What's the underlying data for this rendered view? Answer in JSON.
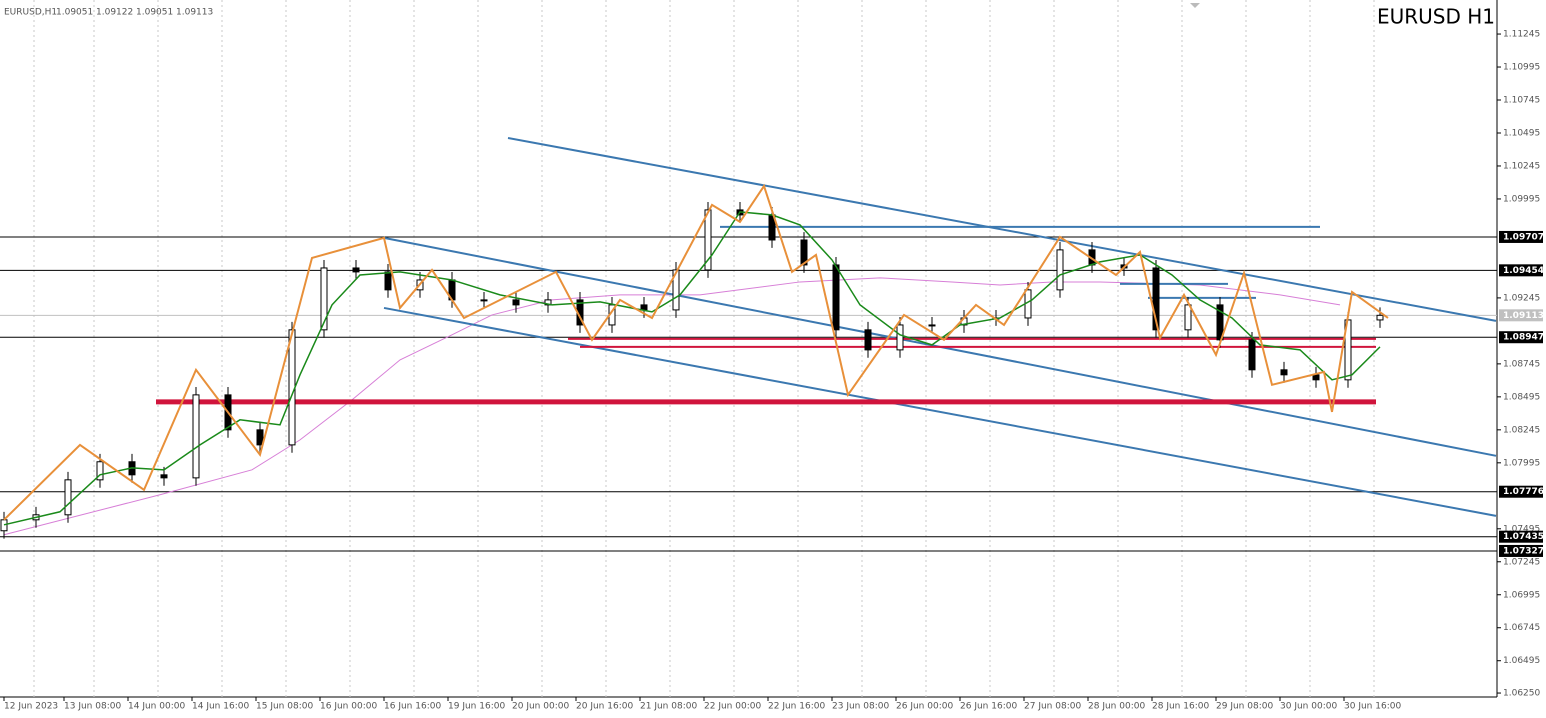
{
  "chart_data": {
    "type": "candlestick",
    "title": "EURUSD H1",
    "header_symbol": "EURUSD,H1",
    "header_ohlc": [
      1.09051,
      1.09122,
      1.09051,
      1.09113
    ],
    "xlim": [
      0,
      374
    ],
    "ylim": [
      1.0622,
      1.11503
    ],
    "yticks": [
      1.11245,
      1.10995,
      1.10745,
      1.10495,
      1.10245,
      1.09995,
      1.09245,
      1.08745,
      1.08495,
      1.08245,
      1.07995,
      1.07495,
      1.07245,
      1.06995,
      1.06745,
      1.06495,
      {
        "value": 1.0625,
        "label": "1.06250"
      }
    ],
    "xticks": [
      {
        "value": 1,
        "label": "12 Jun 2023"
      },
      {
        "value": 16,
        "label": "13 Jun 08:00"
      },
      {
        "value": 32,
        "label": "14 Jun 00:00"
      },
      {
        "value": 48,
        "label": "14 Jun 16:00"
      },
      {
        "value": 64,
        "label": "15 Jun 08:00"
      },
      {
        "value": 80,
        "label": "16 Jun 00:00"
      },
      {
        "value": 96,
        "label": "16 Jun 16:00"
      },
      {
        "value": 112,
        "label": "19 Jun 16:00"
      },
      {
        "value": 128,
        "label": "20 Jun 00:00"
      },
      {
        "value": 144,
        "label": "20 Jun 16:00"
      },
      {
        "value": 160,
        "label": "21 Jun 08:00"
      },
      {
        "value": 176,
        "label": "22 Jun 00:00"
      },
      {
        "value": 192,
        "label": "22 Jun 16:00"
      },
      {
        "value": 208,
        "label": "23 Jun 08:00"
      },
      {
        "value": 224,
        "label": "26 Jun 00:00"
      },
      {
        "value": 240,
        "label": "26 Jun 16:00"
      },
      {
        "value": 256,
        "label": "27 Jun 08:00"
      },
      {
        "value": 272,
        "label": "28 Jun 00:00"
      },
      {
        "value": 288,
        "label": "28 Jun 16:00"
      },
      {
        "value": 304,
        "label": "29 Jun 08:00"
      },
      {
        "value": 320,
        "label": "30 Jun 00:00"
      },
      {
        "value": 336,
        "label": "30 Jun 16:00"
      }
    ],
    "x": [
      1,
      9,
      17,
      25,
      33,
      41,
      49,
      57,
      65,
      73,
      81,
      89,
      97,
      105,
      113,
      121,
      129,
      137,
      145,
      153,
      161,
      169,
      177,
      185,
      193,
      201,
      209,
      217,
      225,
      233,
      241,
      249,
      257,
      265,
      273,
      281,
      289,
      297,
      305,
      313,
      321,
      329,
      337,
      345
    ],
    "open": [
      1.0748,
      1.07563,
      1.07601,
      1.07866,
      1.08003,
      1.07904,
      1.07881,
      1.0851,
      1.08245,
      1.08131,
      1.09003,
      1.09472,
      1.09442,
      1.09306,
      1.09381,
      1.0923,
      1.0923,
      1.09192,
      1.0923,
      1.0904,
      1.09192,
      1.09154,
      1.09457,
      1.09912,
      1.09874,
      1.09684,
      1.09495,
      1.09003,
      1.08851,
      1.0904,
      1.0904,
      1.09093,
      1.09093,
      1.09306,
      1.09609,
      1.09495,
      1.09472,
      1.09003,
      1.09192,
      1.08927,
      1.087,
      1.08662,
      1.08624,
      1.09078
    ],
    "high": [
      1.07623,
      1.07661,
      1.07926,
      1.08063,
      1.08063,
      1.07964,
      1.0857,
      1.0857,
      1.08305,
      1.09063,
      1.09532,
      1.09532,
      1.09502,
      1.09441,
      1.09441,
      1.0929,
      1.0929,
      1.0929,
      1.0929,
      1.09252,
      1.09252,
      1.09517,
      1.09972,
      1.09972,
      1.09934,
      1.09744,
      1.09555,
      1.09063,
      1.091,
      1.091,
      1.09153,
      1.09153,
      1.09366,
      1.09669,
      1.09669,
      1.09555,
      1.09532,
      1.09252,
      1.09252,
      1.08987,
      1.0876,
      1.08722,
      1.09138,
      1.09173
    ],
    "low": [
      1.0742,
      1.07503,
      1.07541,
      1.07806,
      1.07844,
      1.07821,
      1.07821,
      1.08185,
      1.08071,
      1.08071,
      1.08943,
      1.09382,
      1.09246,
      1.09246,
      1.0917,
      1.0917,
      1.09132,
      1.09132,
      1.0898,
      1.0898,
      1.09094,
      1.09094,
      1.09397,
      1.09814,
      1.09624,
      1.09435,
      1.08943,
      1.08791,
      1.08791,
      1.0898,
      1.0898,
      1.09033,
      1.09033,
      1.09246,
      1.09435,
      1.09412,
      1.08943,
      1.08943,
      1.08867,
      1.0864,
      1.08602,
      1.08564,
      1.08564,
      1.09018
    ],
    "close": [
      1.07563,
      1.07601,
      1.07866,
      1.08003,
      1.07904,
      1.07881,
      1.0851,
      1.08245,
      1.08131,
      1.09003,
      1.09472,
      1.09442,
      1.09306,
      1.09381,
      1.0923,
      1.0923,
      1.09192,
      1.0923,
      1.0904,
      1.09192,
      1.09154,
      1.09457,
      1.09912,
      1.09874,
      1.09684,
      1.09495,
      1.09003,
      1.08851,
      1.0904,
      1.0904,
      1.09093,
      1.09093,
      1.09306,
      1.09609,
      1.09495,
      1.09472,
      1.09003,
      1.09192,
      1.08927,
      1.087,
      1.08662,
      1.08624,
      1.09078,
      1.09113
    ],
    "price_labels": [
      1.09707,
      1.09454,
      1.09113,
      1.08947,
      1.07776,
      1.07435,
      1.07327
    ],
    "price_label_colors": [
      "#000000",
      "#000000",
      "#c0c0c0",
      "#000000",
      "#000000",
      "#000000",
      "#000000"
    ],
    "zigzag": {
      "color": "#e8903a",
      "x": [
        1,
        20,
        36,
        49,
        65,
        78,
        96,
        100,
        108,
        116,
        139,
        148,
        155,
        163,
        178,
        185,
        191,
        198,
        204,
        212,
        226,
        236,
        244,
        251,
        265,
        279,
        285,
        290,
        296,
        304,
        311,
        318,
        331,
        333,
        338,
        347
      ],
      "values": [
        1.07563,
        1.08131,
        1.0779,
        1.087,
        1.08056,
        1.09548,
        1.097,
        1.09169,
        1.09457,
        1.09093,
        1.09442,
        1.08927,
        1.0923,
        1.09093,
        1.0995,
        1.09821,
        1.10093,
        1.09442,
        1.09571,
        1.0851,
        1.09116,
        1.08927,
        1.09192,
        1.0904,
        1.09707,
        1.09419,
        1.09593,
        1.08942,
        1.09268,
        1.08813,
        1.09434,
        1.08586,
        1.08684,
        1.08381,
        1.0929,
        1.09093
      ]
    },
    "ma_fast": {
      "color": "#1a8a1a",
      "x": [
        1,
        15,
        25,
        33,
        41,
        50,
        60,
        70,
        75,
        83,
        90,
        100,
        113,
        125,
        138,
        150,
        163,
        170,
        178,
        185,
        193,
        200,
        208,
        215,
        225,
        233,
        240,
        250,
        258,
        265,
        275,
        285,
        293,
        300,
        308,
        315,
        325,
        333,
        338,
        345
      ],
      "values": [
        1.07525,
        1.07624,
        1.07904,
        1.07957,
        1.07942,
        1.08131,
        1.08321,
        1.08283,
        1.08662,
        1.09192,
        1.09419,
        1.09442,
        1.09381,
        1.09268,
        1.09192,
        1.09215,
        1.09139,
        1.09268,
        1.09571,
        1.09897,
        1.09874,
        1.09798,
        1.09533,
        1.09192,
        1.08965,
        1.08889,
        1.0904,
        1.09093,
        1.0923,
        1.09419,
        1.09518,
        1.09571,
        1.09419,
        1.0923,
        1.09093,
        1.08889,
        1.08851,
        1.08624,
        1.08662,
        1.08874
      ]
    },
    "ma_slow": {
      "color": "#d77fd7",
      "x": [
        1,
        40,
        63,
        75,
        88,
        100,
        113,
        123,
        138,
        155,
        175,
        200,
        220,
        238,
        250,
        263,
        275,
        300,
        320,
        335
      ],
      "values": [
        1.0745,
        1.07753,
        1.07942,
        1.08169,
        1.08472,
        1.08775,
        1.08965,
        1.09116,
        1.0923,
        1.09268,
        1.09268,
        1.09366,
        1.09397,
        1.09366,
        1.09343,
        1.09366,
        1.09366,
        1.09343,
        1.09268,
        1.09192
      ]
    },
    "hlines": [
      {
        "color": "#d0143c",
        "width": 5,
        "x": [
          39,
          344
        ],
        "value": 1.08457
      },
      {
        "color": "#d0143c",
        "width": 2,
        "x": [
          142,
          344
        ],
        "value": 1.08934
      },
      {
        "color": "#d0143c",
        "width": 2,
        "x": [
          145,
          344
        ],
        "value": 1.08874
      },
      {
        "color": "#3b78b0",
        "width": 2,
        "x": [
          180,
          330
        ],
        "value": 1.09783
      },
      {
        "color": "#3b78b0",
        "width": 2,
        "x": [
          280,
          307
        ],
        "value": 1.09351
      },
      {
        "color": "#3b78b0",
        "width": 2,
        "x": [
          287,
          314
        ],
        "value": 1.09245
      }
    ],
    "channels": [
      {
        "color": "#3b78b0",
        "x": [
          127,
          374
        ],
        "values": [
          1.10457,
          1.09071
        ]
      },
      {
        "color": "#3b78b0",
        "x": [
          96,
          374
        ],
        "values": [
          1.097,
          1.08048
        ]
      },
      {
        "color": "#3b78b0",
        "x": [
          96,
          374
        ],
        "values": [
          1.09169,
          1.07593
        ]
      }
    ]
  }
}
